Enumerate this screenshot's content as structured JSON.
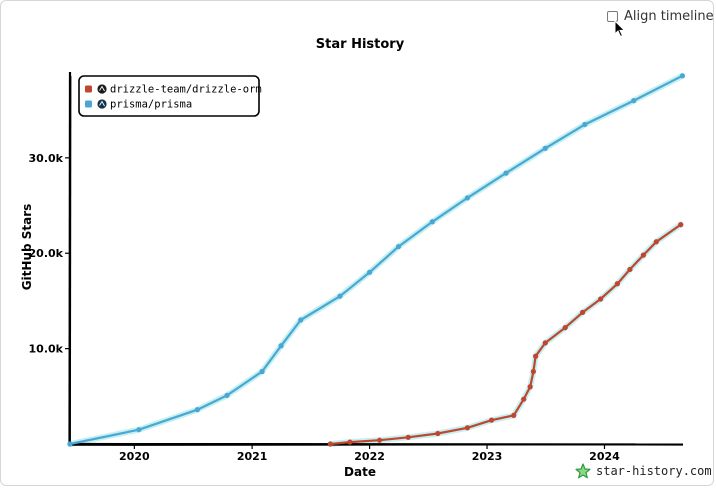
{
  "controls": {
    "align_timeline_label": "Align timeline"
  },
  "brand": {
    "label": "star-history.com",
    "icon": "star-icon"
  },
  "colors": {
    "drizzle": "#c0462f",
    "prisma": "#4aa7d3",
    "halo": "#b6ecef"
  },
  "chart_data": {
    "type": "line",
    "title": "Star History",
    "xlabel": "Date",
    "ylabel": "GitHub Stars",
    "x_ticks": [
      "2020",
      "2021",
      "2022",
      "2023",
      "2024"
    ],
    "y_ticks": [
      "10.0k",
      "20.0k",
      "30.0k"
    ],
    "xlim": [
      "2019-06-15",
      "2024-09-01"
    ],
    "ylim": [
      0,
      39000
    ],
    "legend_position": "top-left",
    "grid": false,
    "series": [
      {
        "name": "drizzle-team/drizzle-orm",
        "color": "#c0462f",
        "points": [
          [
            "2021-09-01",
            0
          ],
          [
            "2021-11-01",
            200
          ],
          [
            "2022-02-01",
            400
          ],
          [
            "2022-05-01",
            700
          ],
          [
            "2022-08-01",
            1100
          ],
          [
            "2022-11-01",
            1700
          ],
          [
            "2023-01-15",
            2500
          ],
          [
            "2023-03-25",
            3000
          ],
          [
            "2023-04-25",
            4700
          ],
          [
            "2023-05-15",
            6000
          ],
          [
            "2023-05-25",
            7600
          ],
          [
            "2023-06-01",
            9200
          ],
          [
            "2023-07-01",
            10600
          ],
          [
            "2023-09-01",
            12200
          ],
          [
            "2023-10-25",
            13800
          ],
          [
            "2023-12-20",
            15200
          ],
          [
            "2024-02-10",
            16800
          ],
          [
            "2024-03-20",
            18300
          ],
          [
            "2024-05-01",
            19800
          ],
          [
            "2024-06-10",
            21200
          ],
          [
            "2024-08-25",
            23000
          ]
        ]
      },
      {
        "name": "prisma/prisma",
        "color": "#4aa7d3",
        "points": [
          [
            "2019-06-15",
            0
          ],
          [
            "2020-01-15",
            1500
          ],
          [
            "2020-07-15",
            3600
          ],
          [
            "2020-10-15",
            5100
          ],
          [
            "2021-02-01",
            7600
          ],
          [
            "2021-04-01",
            10300
          ],
          [
            "2021-06-01",
            13000
          ],
          [
            "2021-10-01",
            15500
          ],
          [
            "2022-01-01",
            18000
          ],
          [
            "2022-04-01",
            20700
          ],
          [
            "2022-07-15",
            23300
          ],
          [
            "2022-11-01",
            25800
          ],
          [
            "2023-03-01",
            28400
          ],
          [
            "2023-07-01",
            31000
          ],
          [
            "2023-11-01",
            33500
          ],
          [
            "2024-04-01",
            36000
          ],
          [
            "2024-08-30",
            38600
          ]
        ]
      }
    ]
  }
}
